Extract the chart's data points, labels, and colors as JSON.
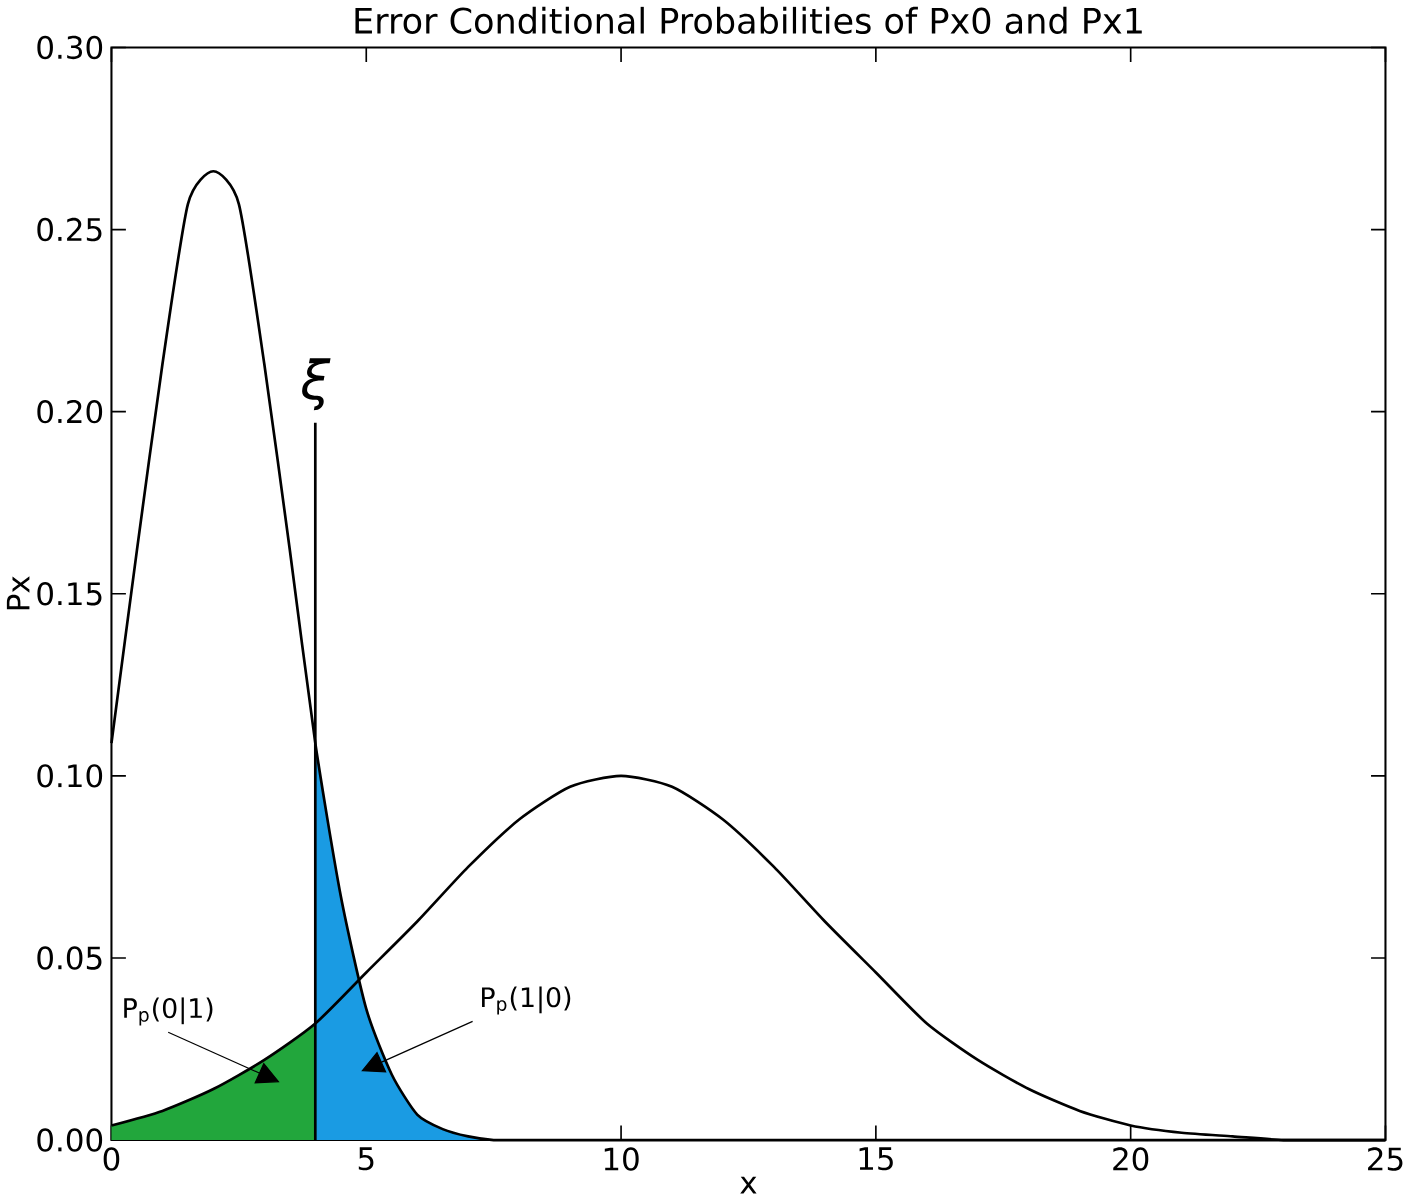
{
  "chart_data": {
    "type": "line",
    "title": "Error Conditional Probabilities of Px0 and Px1",
    "xlabel": "x",
    "ylabel": "Px",
    "xlim": [
      0,
      25
    ],
    "ylim": [
      0,
      0.3
    ],
    "xticks": [
      0,
      5,
      10,
      15,
      20,
      25
    ],
    "yticks": [
      {
        "value": 0,
        "label": "0.00"
      },
      {
        "value": 0.05,
        "label": "0.05"
      },
      {
        "value": 0.1,
        "label": "0.10"
      },
      {
        "value": 0.15,
        "label": "0.15"
      },
      {
        "value": 0.2,
        "label": "0.20"
      },
      {
        "value": 0.25,
        "label": "0.25"
      },
      {
        "value": 0.3,
        "label": "0.30"
      }
    ],
    "grid": false,
    "marker": "none",
    "line_style": "solid",
    "series": [
      {
        "color": "#000000",
        "x": [
          0,
          0.5,
          1,
          1.5,
          2,
          2.5,
          3,
          3.5,
          4,
          4.5,
          5,
          5.5,
          6,
          6.5,
          7,
          7.5,
          8,
          10,
          15,
          20,
          25
        ],
        "values": [
          0.109,
          0.162,
          0.213,
          0.257,
          0.266,
          0.257,
          0.213,
          0.162,
          0.109,
          0.067,
          0.036,
          0.018,
          0.007,
          0.003,
          0.001,
          0.0,
          0.0,
          0.0,
          0.0,
          0.0,
          0.0
        ]
      },
      {
        "color": "#000000",
        "x": [
          0,
          1,
          2,
          3,
          4,
          5,
          6,
          7,
          8,
          9,
          10,
          11,
          12,
          13,
          14,
          15,
          16,
          17,
          18,
          19,
          20,
          21,
          22,
          23,
          24,
          25
        ],
        "values": [
          0.004,
          0.008,
          0.014,
          0.022,
          0.032,
          0.046,
          0.06,
          0.075,
          0.088,
          0.097,
          0.1,
          0.097,
          0.088,
          0.075,
          0.06,
          0.046,
          0.032,
          0.022,
          0.014,
          0.008,
          0.004,
          0.002,
          0.001,
          0.0,
          0.0,
          0.0
        ]
      },
      {
        "type": "area",
        "color": "#22a63c",
        "x": [
          0,
          1,
          2,
          3,
          4
        ],
        "values": [
          0.004,
          0.008,
          0.014,
          0.022,
          0.032
        ]
      },
      {
        "type": "area",
        "color": "#1a9be3",
        "x": [
          4,
          4.5,
          5,
          5.5,
          6,
          6.5,
          7,
          7.5
        ],
        "values": [
          0.109,
          0.067,
          0.036,
          0.018,
          0.007,
          0.003,
          0.001,
          0.0
        ]
      }
    ],
    "ref_lines": [
      {
        "axis": "x",
        "value": 4,
        "label": "ξ"
      }
    ],
    "annotations": [
      "P$_{p}$(0|1)",
      "P$_{p}$(1|0)"
    ]
  }
}
